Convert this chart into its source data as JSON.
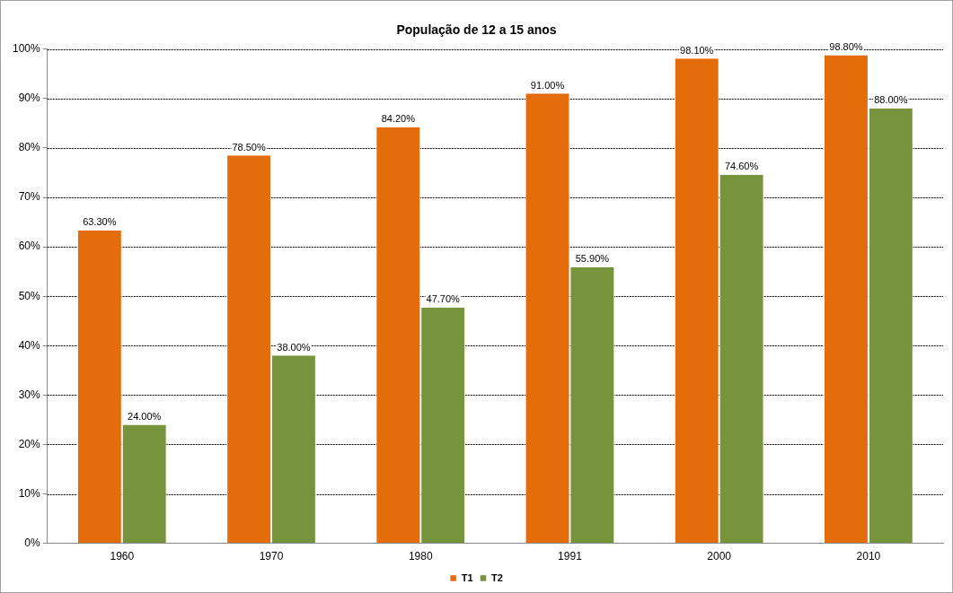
{
  "chart_data": {
    "type": "bar",
    "title": "População de 12 a 15 anos",
    "categories": [
      "1960",
      "1970",
      "1980",
      "1991",
      "2000",
      "2010"
    ],
    "series": [
      {
        "name": "T1",
        "color": "#e46c0a",
        "values": [
          63.3,
          78.5,
          84.2,
          91.0,
          98.1,
          98.8
        ],
        "value_labels": [
          "63.30%",
          "78.50%",
          "84.20%",
          "91.00%",
          "98.10%",
          "98.80%"
        ]
      },
      {
        "name": "T2",
        "color": "#77933c",
        "values": [
          24.0,
          38.0,
          47.7,
          55.9,
          74.6,
          88.0
        ],
        "value_labels": [
          "24.00%",
          "38.00%",
          "47.70%",
          "55.90%",
          "74.60%",
          "88.00%"
        ]
      }
    ],
    "ylim": [
      0,
      100
    ],
    "yticks": [
      {
        "value": 0,
        "label": "0%"
      },
      {
        "value": 10,
        "label": "10%"
      },
      {
        "value": 20,
        "label": "20%"
      },
      {
        "value": 30,
        "label": "30%"
      },
      {
        "value": 40,
        "label": "40%"
      },
      {
        "value": 50,
        "label": "50%"
      },
      {
        "value": 60,
        "label": "60%"
      },
      {
        "value": 70,
        "label": "70%"
      },
      {
        "value": 80,
        "label": "80%"
      },
      {
        "value": 90,
        "label": "90%"
      },
      {
        "value": 100,
        "label": "100%"
      }
    ],
    "grid": "y",
    "legend": "bottom"
  }
}
